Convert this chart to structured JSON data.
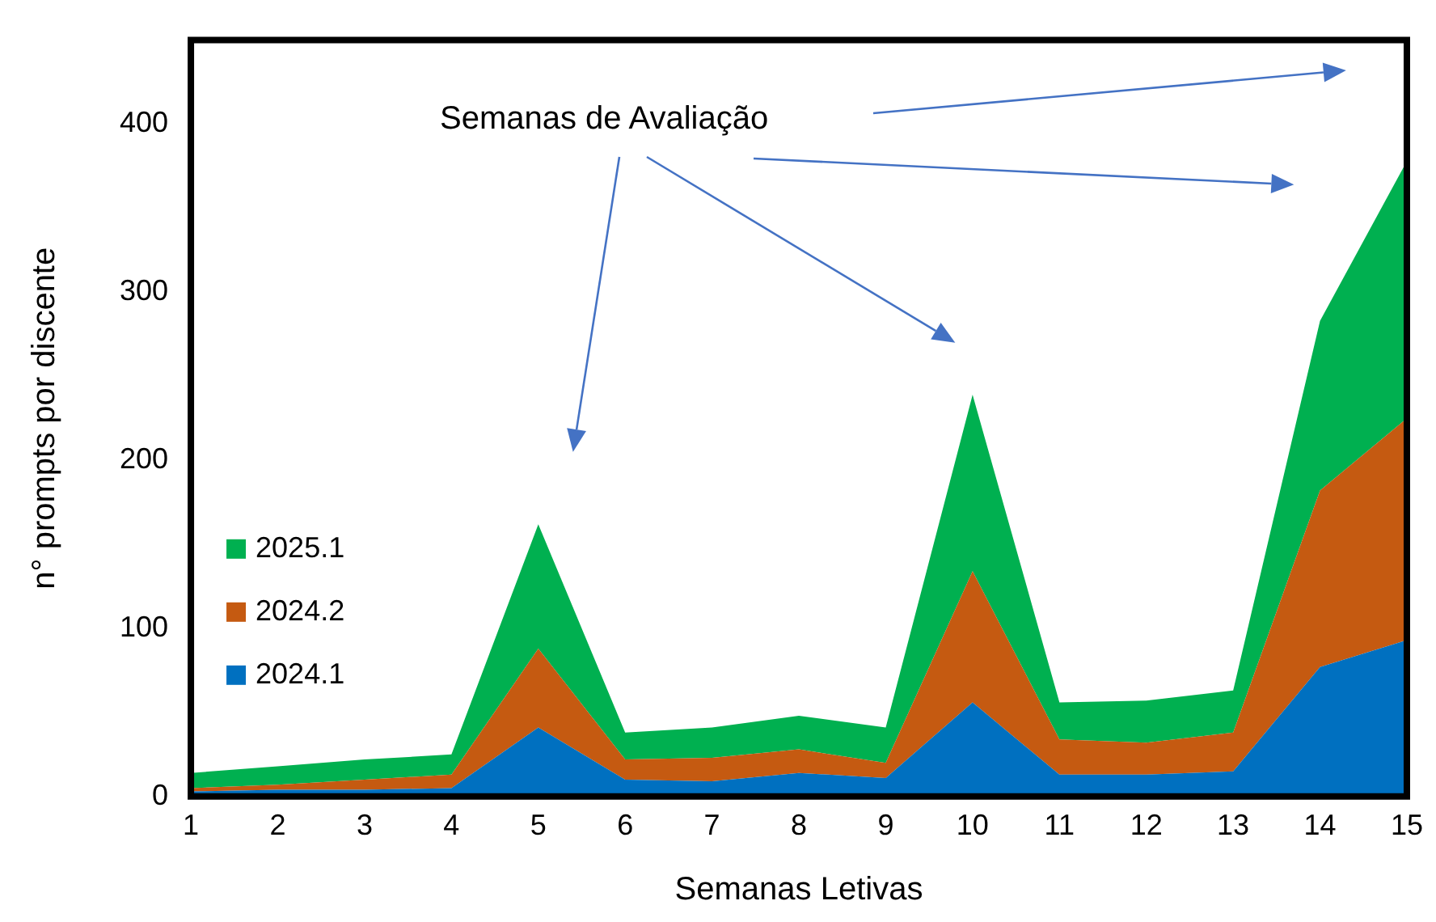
{
  "chart_data": {
    "type": "area",
    "stacked": true,
    "xlabel": "Semanas Letivas",
    "ylabel": "n° prompts por discente",
    "x": [
      1,
      2,
      3,
      4,
      5,
      6,
      7,
      8,
      9,
      10,
      11,
      12,
      13,
      14,
      15
    ],
    "series": [
      {
        "name": "2024.1",
        "color": "#0070c0",
        "values": [
          3,
          4,
          4,
          5,
          41,
          10,
          9,
          14,
          11,
          56,
          13,
          13,
          15,
          77,
          93
        ]
      },
      {
        "name": "2024.2",
        "color": "#c55a11",
        "values": [
          2,
          3,
          6,
          8,
          47,
          12,
          14,
          14,
          9,
          78,
          21,
          19,
          23,
          105,
          132
        ]
      },
      {
        "name": "2025.1",
        "color": "#00b050",
        "values": [
          9,
          11,
          12,
          12,
          74,
          16,
          18,
          20,
          21,
          105,
          22,
          25,
          25,
          101,
          153
        ]
      }
    ],
    "xlim": [
      1,
      15
    ],
    "xticks": [
      1,
      2,
      3,
      4,
      5,
      6,
      7,
      8,
      9,
      10,
      11,
      12,
      13,
      14,
      15
    ],
    "ylim": [
      0,
      450
    ],
    "yticks": [
      0,
      100,
      200,
      300,
      400
    ],
    "grid": false,
    "legend": "bottom left",
    "annotations": [
      "Semanas de Avaliação"
    ]
  }
}
